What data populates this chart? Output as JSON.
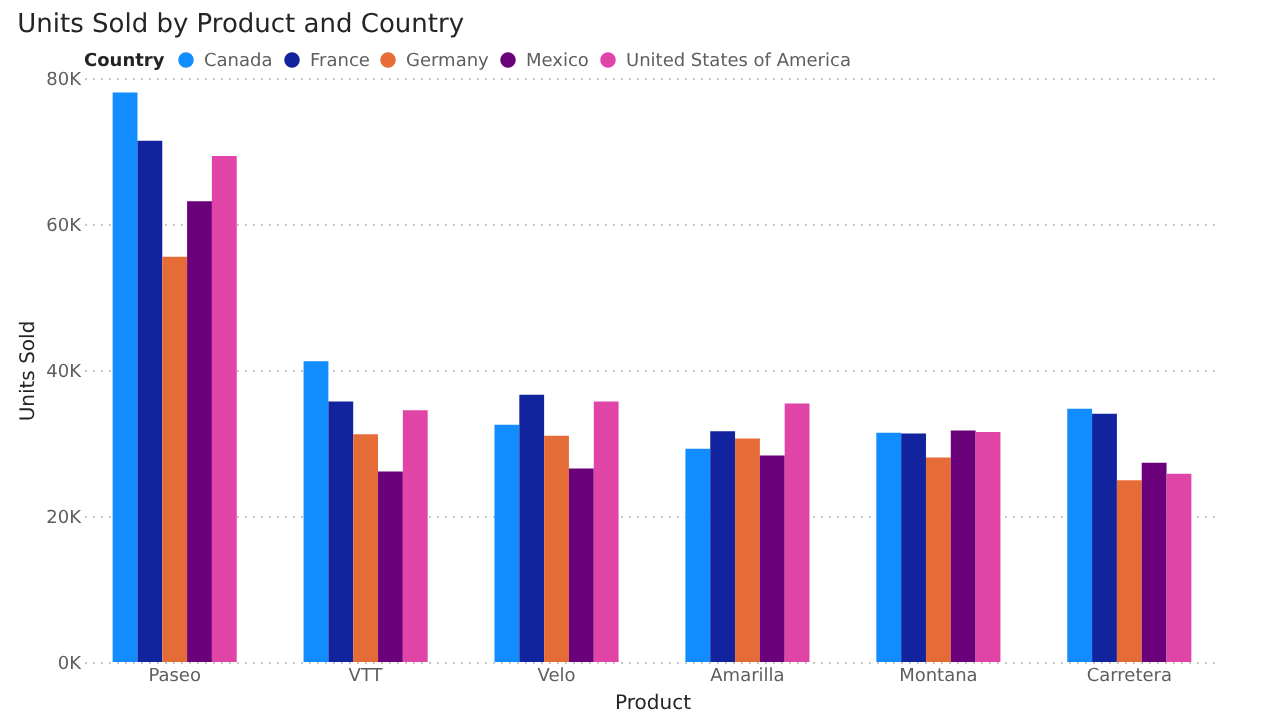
{
  "chart_data": {
    "type": "bar",
    "title": "Units Sold by Product and Country",
    "xlabel": "Product",
    "ylabel": "Units Sold",
    "legend_title": "Country",
    "legend": "top left",
    "grid": "y",
    "categories": [
      "Paseo",
      "VTT",
      "Velo",
      "Amarilla",
      "Montana",
      "Carretera"
    ],
    "ylim": [
      0,
      80000
    ],
    "yticks": [
      {
        "value": 0,
        "label": "0K"
      },
      {
        "value": 20000,
        "label": "20K"
      },
      {
        "value": 40000,
        "label": "40K"
      },
      {
        "value": 60000,
        "label": "60K"
      },
      {
        "value": 80000,
        "label": "80K"
      }
    ],
    "series": [
      {
        "name": "Canada",
        "color": "#118dff",
        "values": [
          78000,
          41200,
          32500,
          29200,
          31400,
          34700
        ]
      },
      {
        "name": "France",
        "color": "#12239e",
        "values": [
          71400,
          35700,
          36600,
          31600,
          31300,
          34000
        ]
      },
      {
        "name": "Germany",
        "color": "#e66c37",
        "values": [
          55500,
          31200,
          31000,
          30600,
          28000,
          24900
        ]
      },
      {
        "name": "Mexico",
        "color": "#6b007b",
        "values": [
          63100,
          26100,
          26500,
          28300,
          31700,
          27300
        ]
      },
      {
        "name": "United States of America",
        "color": "#e044a7",
        "values": [
          69300,
          34500,
          35700,
          35400,
          31500,
          25800
        ]
      }
    ]
  }
}
